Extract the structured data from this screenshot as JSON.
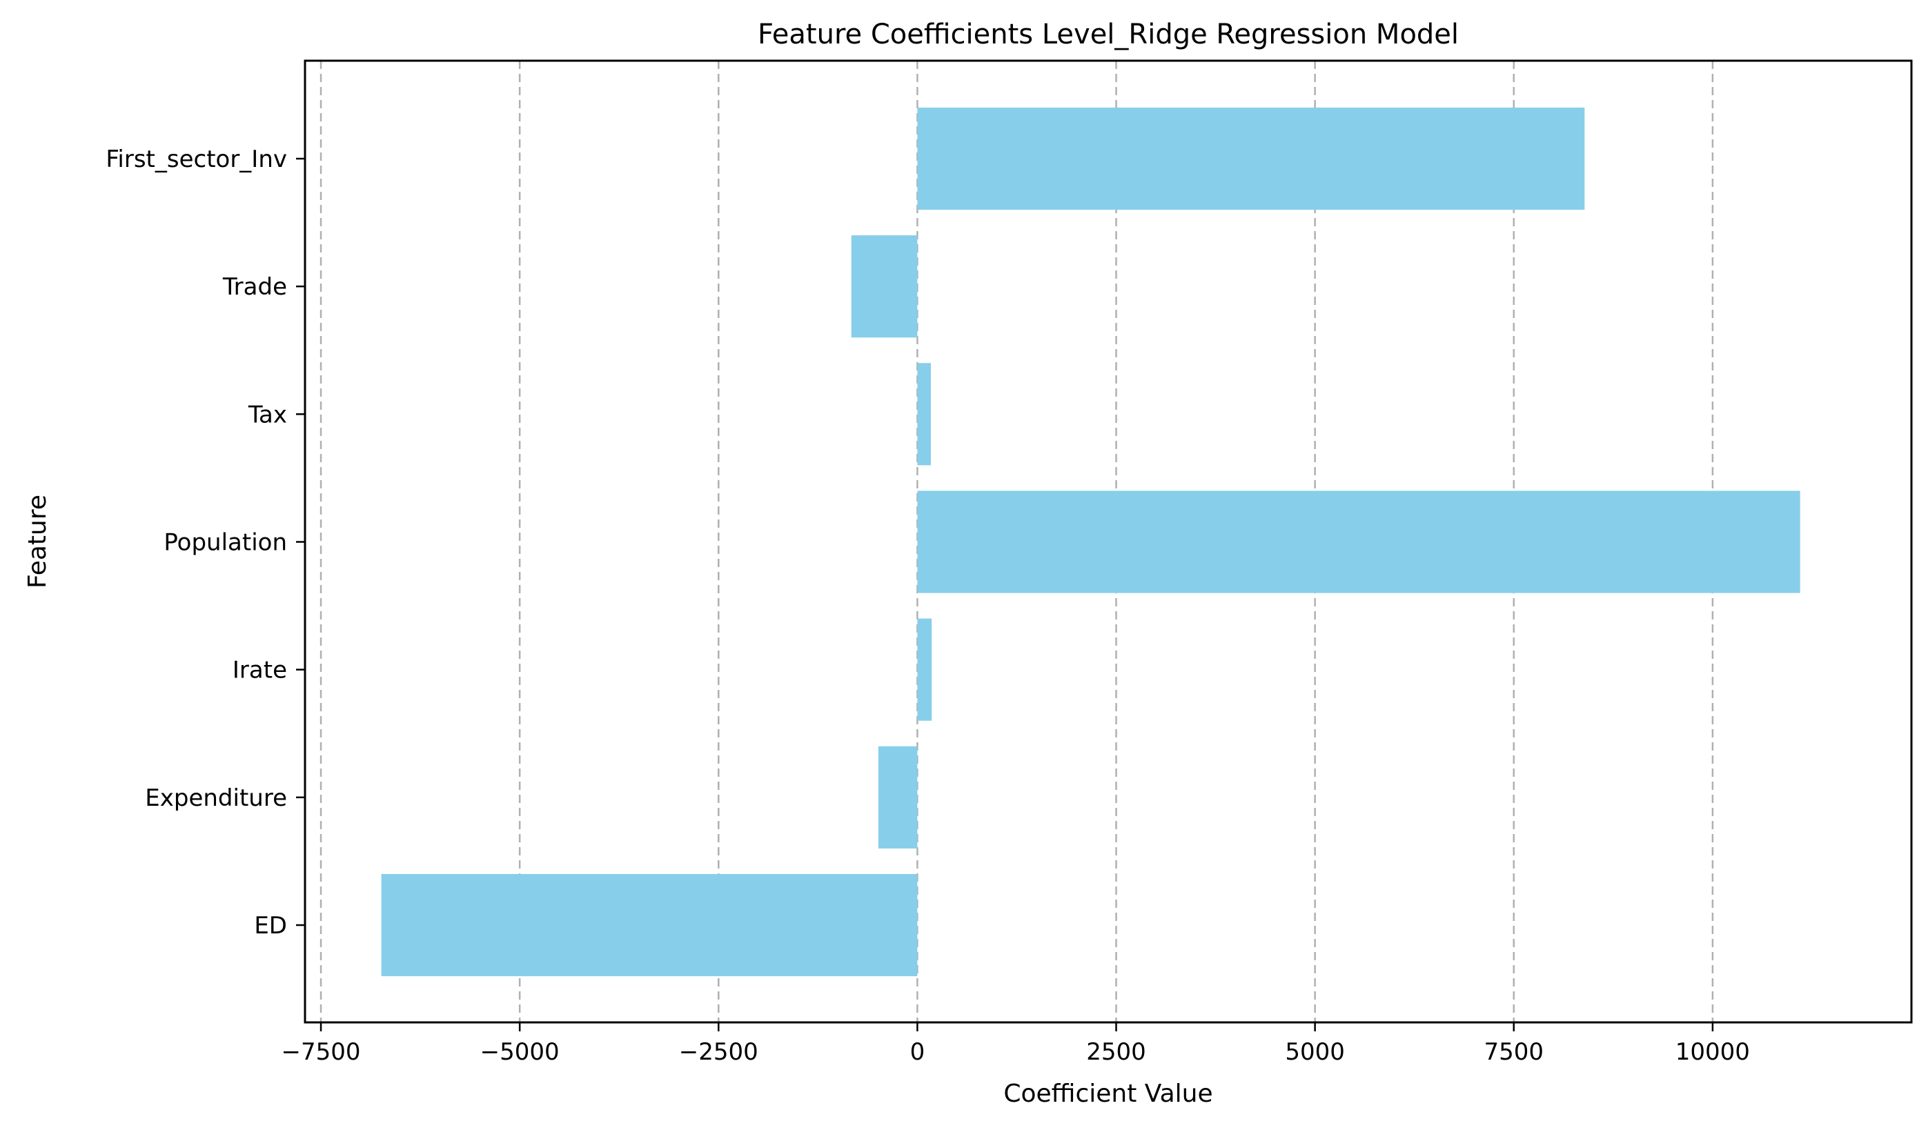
{
  "chart_data": {
    "type": "bar",
    "orientation": "horizontal",
    "title": "Feature Coefficients Level_Ridge Regression Model",
    "xlabel": "Coefficient Value",
    "ylabel": "Feature",
    "categories": [
      "First_sector_Inv",
      "Trade",
      "Tax",
      "Population",
      "Irate",
      "Expenditure",
      "ED"
    ],
    "values": [
      8390,
      -830,
      170,
      11100,
      180,
      -490,
      -6740
    ],
    "xlim": [
      -7700,
      12500
    ],
    "xticks": [
      -7500,
      -5000,
      -2500,
      0,
      2500,
      5000,
      7500,
      10000
    ],
    "xtick_labels": [
      "−7500",
      "−5000",
      "−2500",
      "0",
      "2500",
      "5000",
      "7500",
      "10000"
    ],
    "grid": "x-axis dashed",
    "bar_color": "#87ceeb",
    "legend": "none"
  }
}
